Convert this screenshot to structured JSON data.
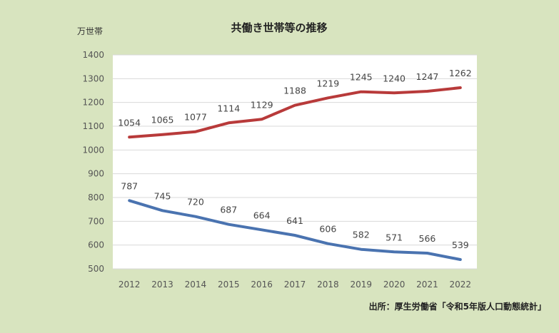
{
  "page": {
    "background": "#d8e4bf",
    "plot_background": "#ffffff"
  },
  "chart_data": {
    "type": "line",
    "title": "共働き世帯等の推移",
    "ylabel": "万世帯",
    "xlabel": "",
    "source": "出所：厚生労働省「令和5年版人口動態統計」",
    "categories": [
      "2012",
      "2013",
      "2014",
      "2015",
      "2016",
      "2017",
      "2018",
      "2019",
      "2020",
      "2021",
      "2022"
    ],
    "ylim": [
      500,
      1400
    ],
    "yticks": [
      500,
      600,
      700,
      800,
      900,
      1000,
      1100,
      1200,
      1300,
      1400
    ],
    "grid": true,
    "legend": "none",
    "series": [
      {
        "color": "#b83a3a",
        "values": [
          1054,
          1065,
          1077,
          1114,
          1129,
          1188,
          1219,
          1245,
          1240,
          1247,
          1262
        ]
      },
      {
        "color": "#4a73b0",
        "values": [
          787,
          745,
          720,
          687,
          664,
          641,
          606,
          582,
          571,
          566,
          539
        ]
      }
    ]
  }
}
